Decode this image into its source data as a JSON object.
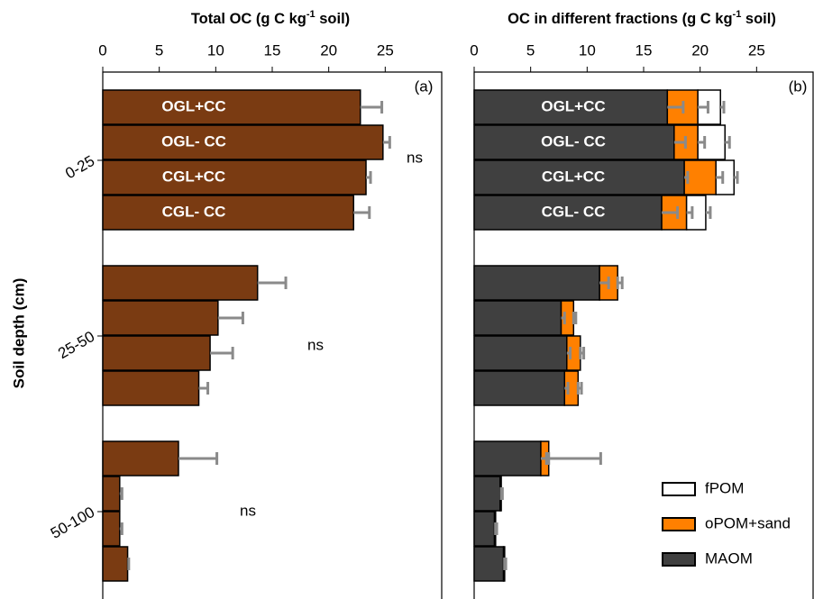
{
  "chart_data": [
    {
      "type": "bar",
      "title": [
        "Total OC (g C kg",
        "-1",
        " soil)"
      ],
      "panel_label": "(a)",
      "ylabel": "Soil depth (cm)",
      "groups": [
        "0-25",
        "25-50",
        "50-100"
      ],
      "categories": [
        "OGL+CC",
        "OGL- CC",
        "CGL+CC",
        "CGL- CC"
      ],
      "color": "#7a3b12",
      "values": [
        [
          22.8,
          24.8,
          23.3,
          22.2
        ],
        [
          13.7,
          10.2,
          9.5,
          8.5
        ],
        [
          6.7,
          1.5,
          1.5,
          2.2
        ]
      ],
      "errors": [
        [
          1.9,
          0.6,
          0.4,
          1.4
        ],
        [
          2.5,
          2.2,
          2.0,
          0.8
        ],
        [
          3.4,
          0.2,
          0.2,
          0.1
        ]
      ],
      "xlim": [
        0,
        30
      ],
      "xticks": [
        0,
        5,
        10,
        15,
        20,
        25
      ],
      "annotations": [
        "ns",
        "ns",
        "ns"
      ]
    },
    {
      "type": "stacked_bar",
      "title": [
        "OC in different fractions (g C kg",
        "-1",
        " soil)"
      ],
      "panel_label": "(b)",
      "categories": [
        "OGL+CC",
        "OGL- CC",
        "CGL+CC",
        "CGL- CC"
      ],
      "series": [
        {
          "name": "MAOM",
          "color": "#404040",
          "values": [
            [
              17.1,
              17.7,
              18.6,
              16.6
            ],
            [
              11.1,
              7.7,
              8.2,
              8.0
            ],
            [
              5.9,
              2.3,
              1.8,
              2.6
            ]
          ],
          "errors": [
            [
              1.4,
              1.0,
              0.3,
              1.4
            ],
            [
              0.8,
              0.3,
              0.3,
              0.3
            ],
            [
              0.5,
              0.2,
              0.2,
              0.2
            ]
          ]
        },
        {
          "name": "oPOM+sand",
          "color": "#ff8000",
          "values": [
            [
              2.7,
              2.1,
              2.8,
              2.2
            ],
            [
              1.6,
              1.1,
              1.2,
              1.2
            ],
            [
              0.7,
              0.1,
              0.1,
              0.1
            ]
          ],
          "errors": [
            [
              0.9,
              0.6,
              0.6,
              0.5
            ],
            [
              0.4,
              0.2,
              0.3,
              0.3
            ],
            [
              4.6,
              0,
              0,
              0
            ]
          ]
        },
        {
          "name": "fPOM",
          "color": "#ffffff",
          "values": [
            [
              2.0,
              2.4,
              1.6,
              1.7
            ],
            [
              0,
              0,
              0,
              0
            ],
            [
              0,
              0,
              0,
              0
            ]
          ],
          "errors": [
            [
              0.3,
              0.4,
              0.3,
              0.4
            ],
            [
              0,
              0,
              0,
              0
            ],
            [
              0,
              0,
              0,
              0
            ]
          ]
        }
      ],
      "xlim": [
        0,
        30
      ],
      "xticks": [
        0,
        5,
        10,
        15,
        20,
        25
      ],
      "legend": "lower right"
    }
  ]
}
